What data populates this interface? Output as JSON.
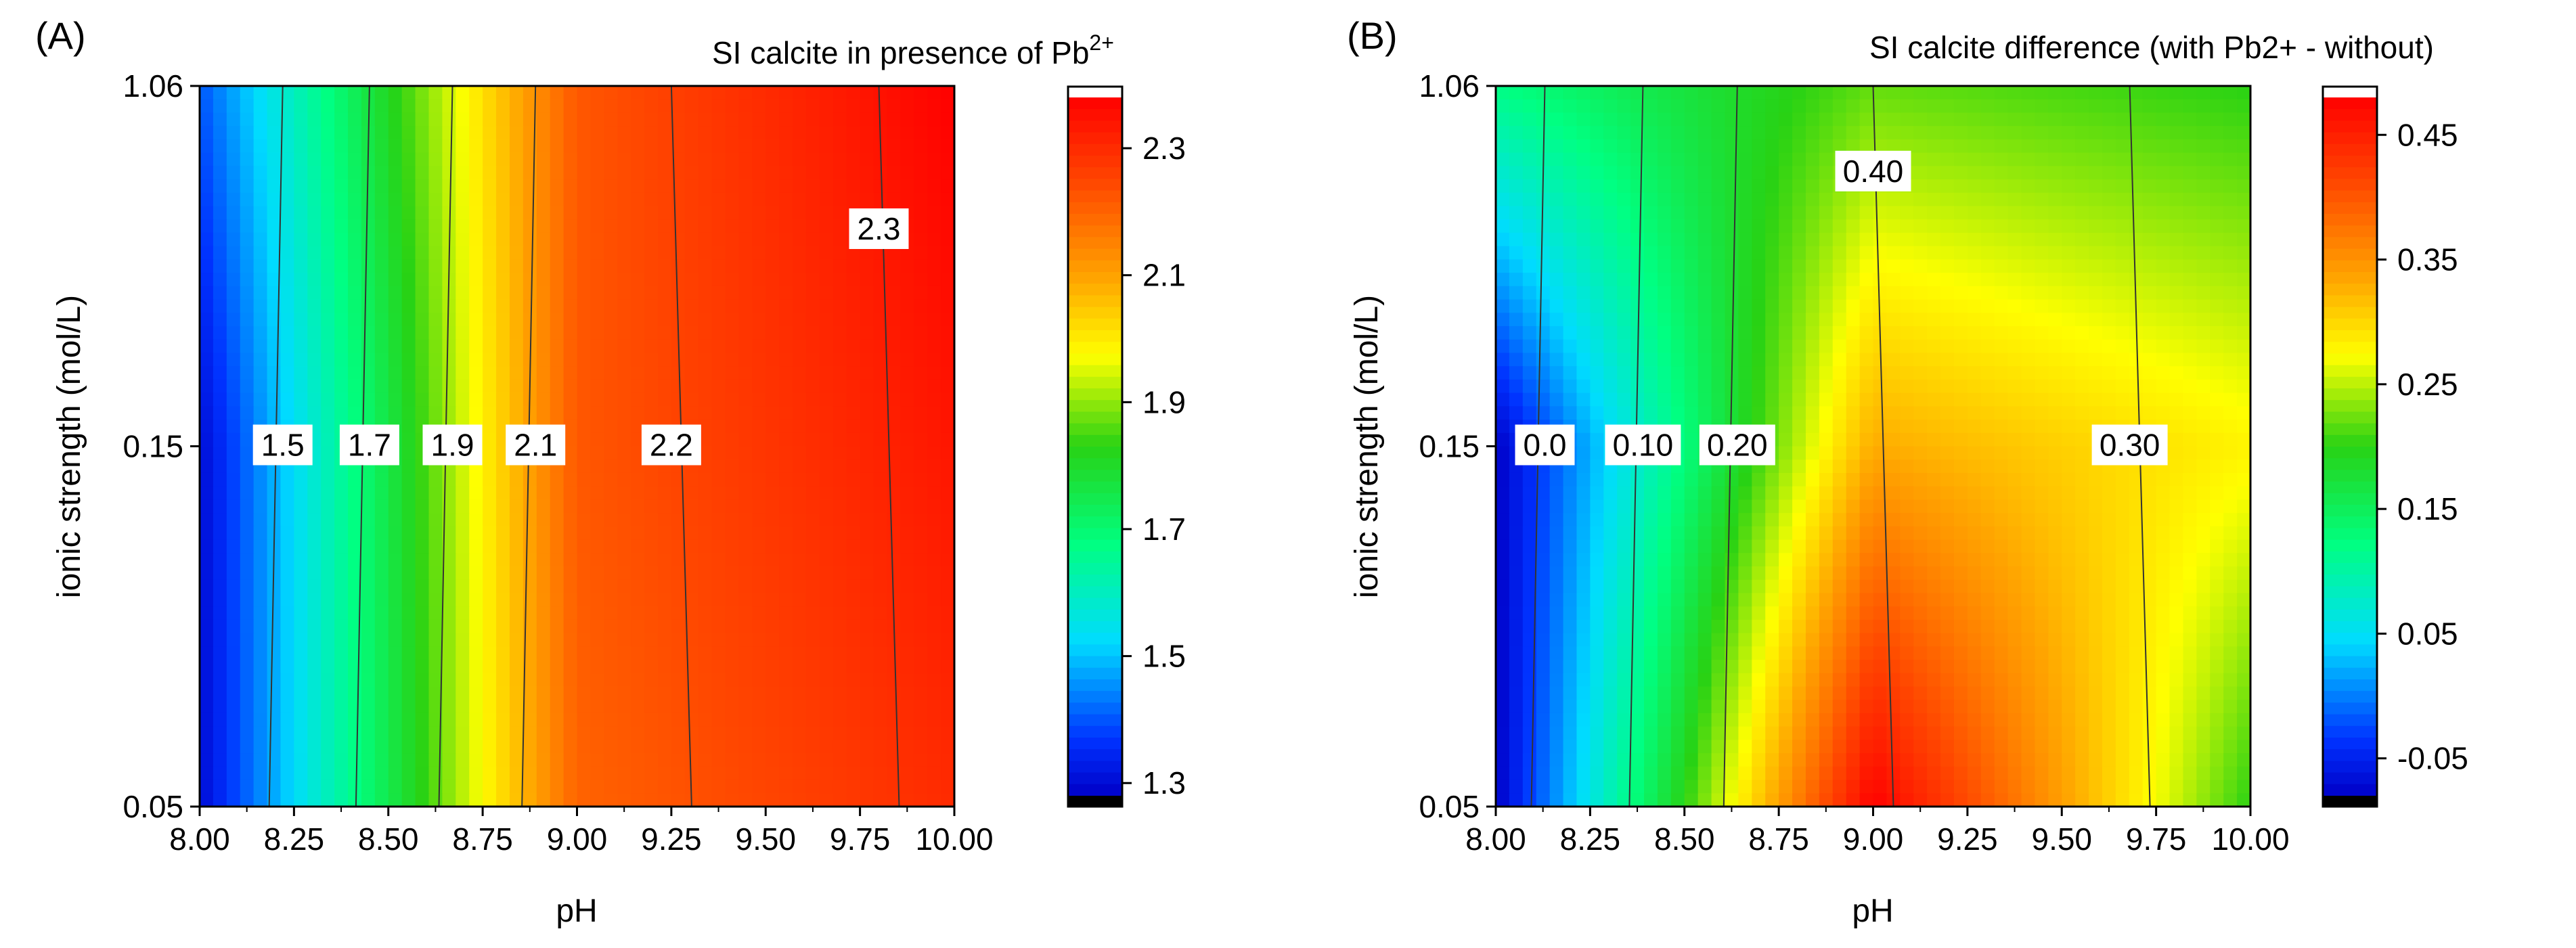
{
  "chart_data": [
    {
      "type": "heatmap",
      "panel_label": "(A)",
      "title": "SI calcite in presence of Pb",
      "title_superscript": "2+",
      "xlabel": "pH",
      "ylabel": "ionic strength (mol/L)",
      "xlim": [
        8.0,
        10.0
      ],
      "x_ticks": [
        "8.00",
        "8.25",
        "8.50",
        "8.75",
        "9.00",
        "9.25",
        "9.50",
        "9.75",
        "10.00"
      ],
      "y_ticks": [
        "0.05",
        "0.15",
        "1.06"
      ],
      "y_scale": "categorical (0.05, 0.15, 1.06 equally spaced)",
      "colorscale": "rainbow (blue-cyan-green-yellow-orange-red)",
      "colorbar": {
        "range": [
          1.28,
          2.38
        ],
        "ticks": [
          "1.3",
          "1.5",
          "1.7",
          "1.9",
          "2.1",
          "2.3"
        ],
        "over_color": "#ffffff",
        "under_color": "#000000"
      },
      "grid_x": [
        8.0,
        9.0,
        10.0
      ],
      "grid_y": [
        "0.05",
        "0.15",
        "1.06"
      ],
      "z_grid": [
        [
          1.3,
          2.2,
          2.3
        ],
        [
          1.3,
          2.22,
          2.34
        ],
        [
          1.4,
          2.22,
          2.38
        ]
      ],
      "contour_labels": [
        {
          "text": "1.5",
          "x": 8.22,
          "y": "0.15"
        },
        {
          "text": "1.7",
          "x": 8.45,
          "y": "0.15"
        },
        {
          "text": "1.9",
          "x": 8.67,
          "y": "0.15"
        },
        {
          "text": "2.1",
          "x": 8.89,
          "y": "0.15"
        },
        {
          "text": "2.2",
          "x": 9.25,
          "y": "0.15"
        },
        {
          "text": "2.3",
          "x": 9.8,
          "y": "1.06",
          "y_offset_frac": 0.2
        }
      ]
    },
    {
      "type": "heatmap",
      "panel_label": "(B)",
      "title": "SI calcite difference (with Pb2+ - without)",
      "xlabel": "pH",
      "ylabel": "ionic strength (mol/L)",
      "xlim": [
        8.0,
        10.0
      ],
      "x_ticks": [
        "8.00",
        "8.25",
        "8.50",
        "8.75",
        "9.00",
        "9.25",
        "9.50",
        "9.75",
        "10.00"
      ],
      "y_ticks": [
        "0.05",
        "0.15",
        "1.06"
      ],
      "y_scale": "categorical (0.05, 0.15, 1.06 equally spaced)",
      "colorscale": "rainbow (blue-cyan-green-yellow-orange-red)",
      "colorbar": {
        "range": [
          -0.08,
          0.48
        ],
        "ticks": [
          "-0.05",
          "0.05",
          "0.15",
          "0.25",
          "0.35",
          "0.45"
        ],
        "over_color": "#ffffff",
        "under_color": "#000000"
      },
      "grid_x": [
        8.0,
        9.0,
        10.0
      ],
      "grid_y": [
        "0.05",
        "0.15",
        "1.06"
      ],
      "z_grid": [
        [
          -0.08,
          0.48,
          0.2
        ],
        [
          -0.08,
          0.33,
          0.28
        ],
        [
          0.12,
          0.22,
          0.2
        ]
      ],
      "contour_labels": [
        {
          "text": "0.0",
          "x": 8.13,
          "y": "0.15"
        },
        {
          "text": "0.10",
          "x": 8.39,
          "y": "0.15"
        },
        {
          "text": "0.20",
          "x": 8.64,
          "y": "0.15"
        },
        {
          "text": "0.30",
          "x": 9.68,
          "y": "0.15"
        },
        {
          "text": "0.40",
          "x": 9.0,
          "y": "0.15",
          "y_offset_frac": -0.38
        }
      ]
    }
  ]
}
